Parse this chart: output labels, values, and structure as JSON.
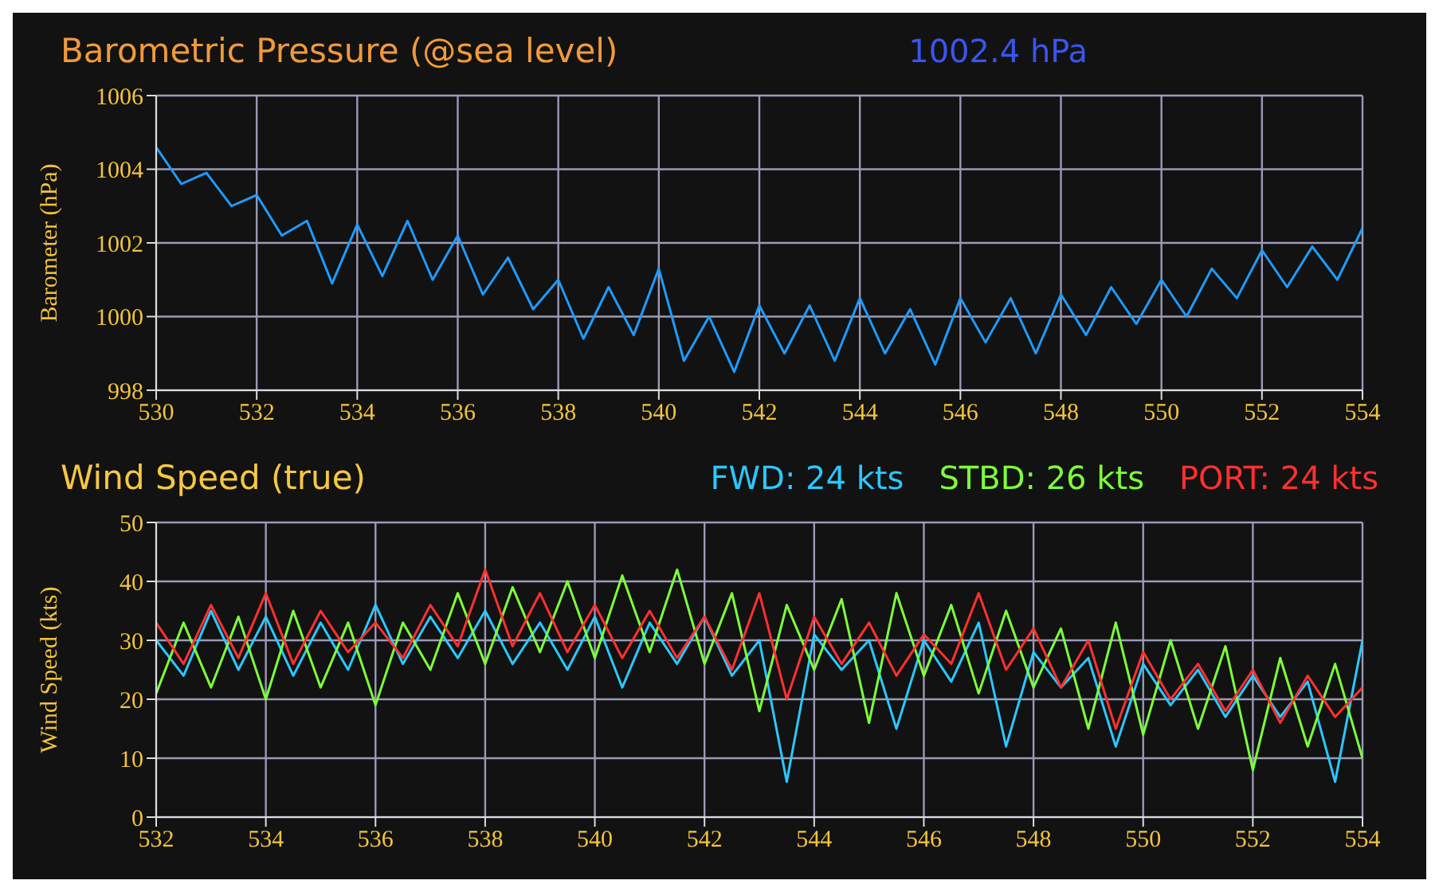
{
  "chart_data": [
    {
      "type": "line",
      "title": "Barometric Pressure (@sea level)",
      "ylabel": "Barometer (hPa)",
      "annotations": [
        "1002.4 hPa"
      ],
      "x": [
        530,
        530.5,
        531,
        531.5,
        532,
        532.5,
        533,
        533.5,
        534,
        534.5,
        535,
        535.5,
        536,
        536.5,
        537,
        537.5,
        538,
        538.5,
        539,
        539.5,
        540,
        540.5,
        541,
        541.5,
        542,
        542.5,
        543,
        543.5,
        544,
        544.5,
        545,
        545.5,
        546,
        546.5,
        547,
        547.5,
        548,
        548.5,
        549,
        549.5,
        550,
        550.5,
        551,
        551.5,
        552,
        552.5,
        553,
        553.5,
        554
      ],
      "series": [
        {
          "color": "#1e9bff",
          "values": [
            1004.6,
            1003.6,
            1003.9,
            1003.0,
            1003.3,
            1002.2,
            1002.6,
            1000.9,
            1002.5,
            1001.1,
            1002.6,
            1001.0,
            1002.2,
            1000.6,
            1001.6,
            1000.2,
            1001.0,
            999.4,
            1000.8,
            999.5,
            1001.3,
            998.8,
            1000.0,
            998.5,
            1000.3,
            999.0,
            1000.3,
            998.8,
            1000.5,
            999.0,
            1000.2,
            998.7,
            1000.5,
            999.3,
            1000.5,
            999.0,
            1000.6,
            999.5,
            1000.8,
            999.8,
            1001.0,
            1000.0,
            1001.3,
            1000.5,
            1001.8,
            1000.8,
            1001.9,
            1001.0,
            1002.4
          ]
        }
      ],
      "xlim": [
        530,
        554
      ],
      "xticks": [
        530,
        532,
        534,
        536,
        538,
        540,
        542,
        544,
        546,
        548,
        550,
        552,
        554
      ],
      "ylim": [
        998,
        1006
      ],
      "yticks": [
        998,
        1000,
        1002,
        1004,
        1006
      ],
      "grid": true,
      "marker": "none",
      "line_style": "solid"
    },
    {
      "type": "line",
      "title": "Wind Speed (true)",
      "ylabel": "Wind Speed (kts)",
      "x": [
        532,
        532.5,
        533,
        533.5,
        534,
        534.5,
        535,
        535.5,
        536,
        536.5,
        537,
        537.5,
        538,
        538.5,
        539,
        539.5,
        540,
        540.5,
        541,
        541.5,
        542,
        542.5,
        543,
        543.5,
        544,
        544.5,
        545,
        545.5,
        546,
        546.5,
        547,
        547.5,
        548,
        548.5,
        549,
        549.5,
        550,
        550.5,
        551,
        551.5,
        552,
        552.5,
        553,
        553.5,
        554
      ],
      "series": [
        {
          "name": "FWD: 24 kts",
          "color": "#2ac8ff",
          "values": [
            30,
            24,
            35,
            25,
            34,
            24,
            33,
            25,
            36,
            26,
            34,
            27,
            35,
            26,
            33,
            25,
            34,
            22,
            33,
            26,
            34,
            24,
            30,
            6,
            31,
            25,
            30,
            15,
            30,
            23,
            33,
            12,
            28,
            22,
            27,
            12,
            26,
            19,
            25,
            17,
            24,
            17,
            23,
            6,
            30
          ]
        },
        {
          "name": "STBD: 26 kts",
          "color": "#7dff3a",
          "values": [
            21,
            33,
            22,
            34,
            20,
            35,
            22,
            33,
            19,
            33,
            25,
            38,
            26,
            39,
            28,
            40,
            27,
            41,
            28,
            42,
            26,
            38,
            18,
            36,
            25,
            37,
            16,
            38,
            24,
            36,
            21,
            35,
            22,
            32,
            15,
            33,
            14,
            30,
            15,
            29,
            8,
            27,
            12,
            26,
            10
          ]
        },
        {
          "name": "PORT: 24 kts",
          "color": "#ff3030",
          "values": [
            33,
            26,
            36,
            27,
            38,
            26,
            35,
            28,
            33,
            27,
            36,
            29,
            42,
            29,
            38,
            28,
            36,
            27,
            35,
            27,
            34,
            25,
            38,
            20,
            34,
            26,
            33,
            24,
            31,
            26,
            38,
            25,
            32,
            22,
            30,
            15,
            28,
            20,
            26,
            18,
            25,
            16,
            24,
            17,
            22
          ]
        }
      ],
      "xlim": [
        532,
        554
      ],
      "xticks": [
        532,
        534,
        536,
        538,
        540,
        542,
        544,
        546,
        548,
        550,
        552,
        554
      ],
      "ylim": [
        0,
        50
      ],
      "yticks": [
        0,
        10,
        20,
        30,
        40,
        50
      ],
      "grid": true,
      "legend": "top right",
      "marker": "none",
      "line_style": "solid"
    }
  ]
}
